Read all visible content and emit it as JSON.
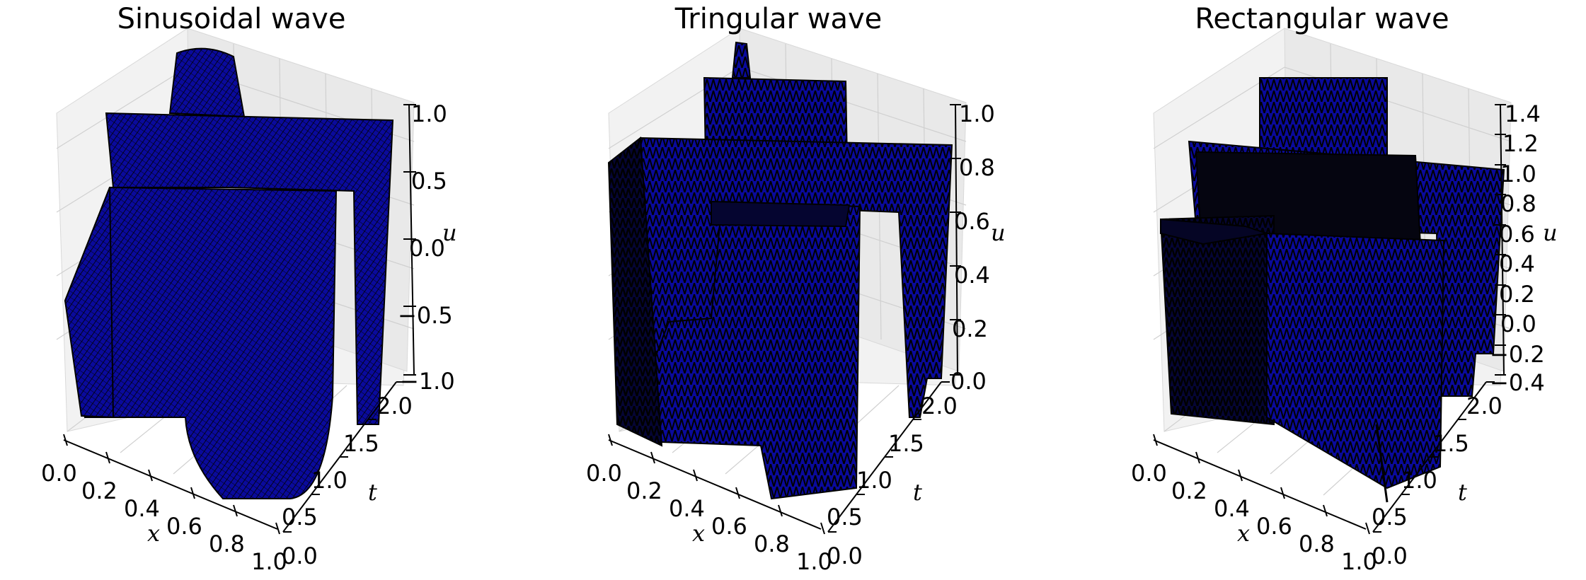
{
  "figure": {
    "background": "#ffffff"
  },
  "chart_data": [
    {
      "type": "surface3d",
      "title": "Sinusoidal wave",
      "xlabel": "x",
      "ylabel": "t",
      "zlabel": "u",
      "x_ticks": [
        "0.0",
        "0.2",
        "0.4",
        "0.6",
        "0.8",
        "1.0"
      ],
      "t_ticks": [
        "0.0",
        "0.5",
        "1.0",
        "1.5",
        "2.0"
      ],
      "u_ticks": [
        "1.0",
        "0.5",
        "0.0",
        "−0.5",
        "−1.0"
      ],
      "xlim": [
        0,
        1
      ],
      "tlim": [
        0,
        2
      ],
      "zlim": [
        -1,
        1
      ],
      "grid": true,
      "surface_color": "#0a0a9c",
      "edge_color": "#000000"
    },
    {
      "type": "surface3d",
      "title": "Tringular wave",
      "xlabel": "x",
      "ylabel": "t",
      "zlabel": "u",
      "x_ticks": [
        "0.0",
        "0.2",
        "0.4",
        "0.6",
        "0.8",
        "1.0"
      ],
      "t_ticks": [
        "0.0",
        "0.5",
        "1.0",
        "1.5",
        "2.0"
      ],
      "u_ticks": [
        "1.0",
        "0.8",
        "0.6",
        "0.4",
        "0.2",
        "0.0"
      ],
      "xlim": [
        0,
        1
      ],
      "tlim": [
        0,
        2
      ],
      "zlim": [
        0,
        1
      ],
      "grid": true,
      "surface_color": "#0a0a9c",
      "edge_color": "#000000"
    },
    {
      "type": "surface3d",
      "title": "Rectangular wave",
      "xlabel": "x",
      "ylabel": "t",
      "zlabel": "u",
      "x_ticks": [
        "0.0",
        "0.2",
        "0.4",
        "0.6",
        "0.8",
        "1.0"
      ],
      "t_ticks": [
        "0.0",
        "0.5",
        "1.0",
        "1.5",
        "2.0"
      ],
      "u_ticks": [
        "1.4",
        "1.2",
        "1.0",
        "0.8",
        "0.6",
        "0.4",
        "0.2",
        "0.0",
        "−0.2",
        "−0.4"
      ],
      "xlim": [
        0,
        1
      ],
      "tlim": [
        0,
        2
      ],
      "zlim": [
        -0.4,
        1.4
      ],
      "grid": true,
      "surface_color": "#0a0a9c",
      "edge_color": "#000000"
    }
  ]
}
